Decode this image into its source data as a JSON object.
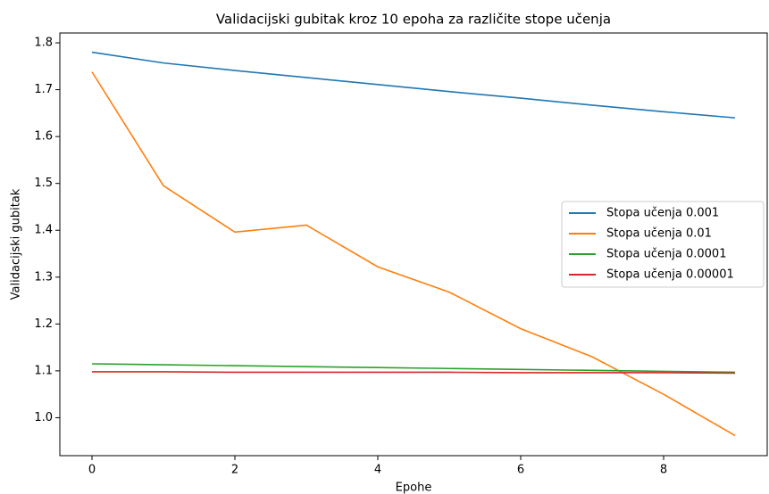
{
  "chart_data": {
    "type": "line",
    "title": "Validacijski gubitak kroz 10 epoha za različite stope učenja",
    "xlabel": "Epohe",
    "ylabel": "Validacijski gubitak",
    "x": [
      0,
      1,
      2,
      3,
      4,
      5,
      6,
      7,
      8,
      9
    ],
    "series": [
      {
        "name": "Stopa učenja 0.001",
        "color": "#1f77b4",
        "values": [
          1.78,
          1.757,
          1.741,
          1.726,
          1.711,
          1.696,
          1.682,
          1.667,
          1.653,
          1.64
        ]
      },
      {
        "name": "Stopa učenja 0.01",
        "color": "#ff7f0e",
        "values": [
          1.738,
          1.495,
          1.396,
          1.411,
          1.322,
          1.268,
          1.19,
          1.13,
          1.05,
          0.962
        ]
      },
      {
        "name": "Stopa učenja 0.0001",
        "color": "#2ca02c",
        "values": [
          1.115,
          1.113,
          1.111,
          1.109,
          1.107,
          1.105,
          1.103,
          1.101,
          1.099,
          1.097
        ]
      },
      {
        "name": "Stopa učenja 0.00001",
        "color": "#d62728",
        "values": [
          1.098,
          1.098,
          1.097,
          1.097,
          1.097,
          1.097,
          1.096,
          1.096,
          1.096,
          1.095
        ]
      }
    ],
    "xlim": [
      -0.45,
      9.45
    ],
    "xticks": [
      0,
      2,
      4,
      6,
      8
    ],
    "ylim": [
      0.919,
      1.821
    ],
    "yticks": [
      {
        "value": 1.0,
        "label": "1.0"
      },
      1.1,
      1.2,
      1.3,
      1.4,
      1.5,
      1.6,
      1.7,
      1.8
    ],
    "legend": "center right",
    "grid": false
  }
}
